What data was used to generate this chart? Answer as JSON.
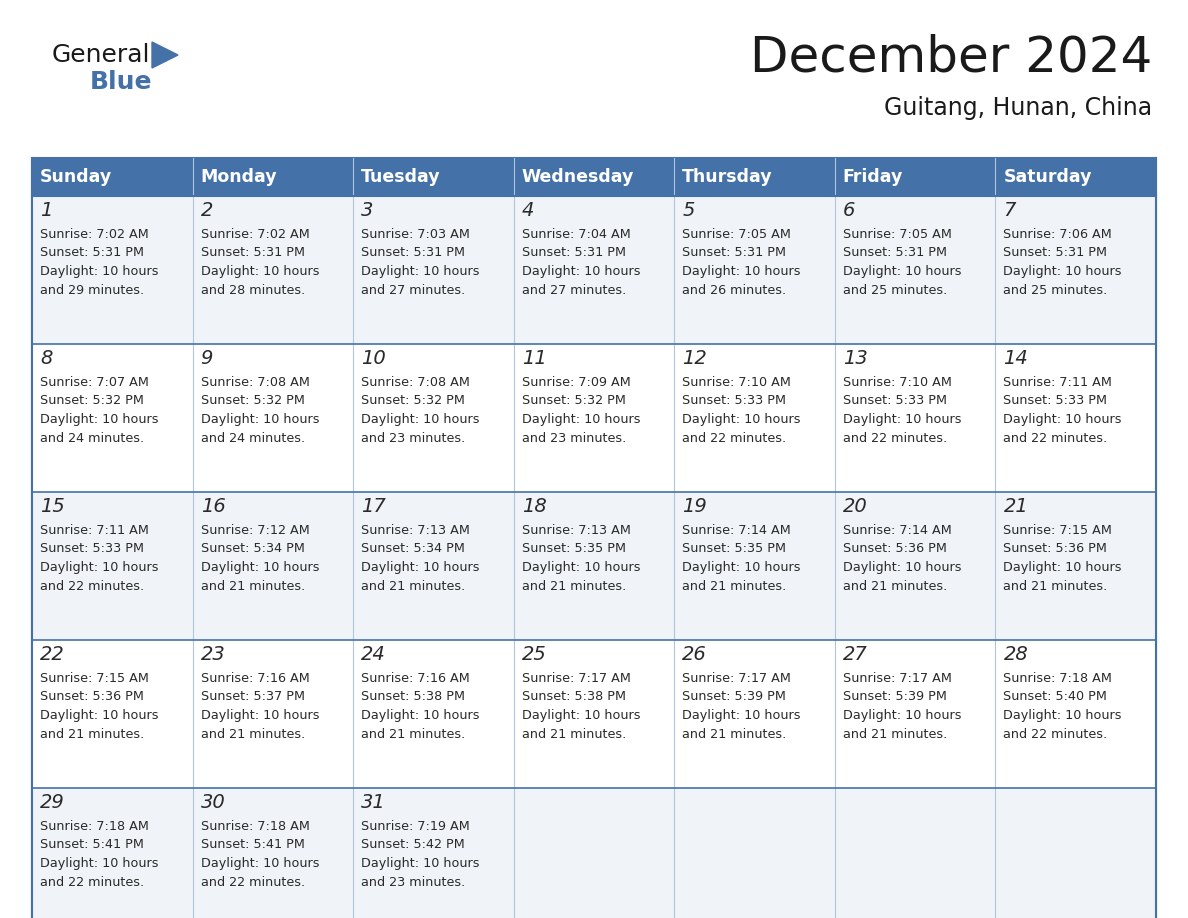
{
  "title": "December 2024",
  "subtitle": "Guitang, Hunan, China",
  "header_bg": "#4472a8",
  "header_text_color": "#ffffff",
  "row_bg_odd": "#f0f4f8",
  "row_bg_even": "#ffffff",
  "border_color": "#4472a8",
  "cell_line_color": "#b0c4de",
  "days_of_week": [
    "Sunday",
    "Monday",
    "Tuesday",
    "Wednesday",
    "Thursday",
    "Friday",
    "Saturday"
  ],
  "calendar_data": [
    [
      {
        "day": 1,
        "sunrise": "7:02 AM",
        "sunset": "5:31 PM",
        "daylight_hours": 10,
        "daylight_minutes": 29
      },
      {
        "day": 2,
        "sunrise": "7:02 AM",
        "sunset": "5:31 PM",
        "daylight_hours": 10,
        "daylight_minutes": 28
      },
      {
        "day": 3,
        "sunrise": "7:03 AM",
        "sunset": "5:31 PM",
        "daylight_hours": 10,
        "daylight_minutes": 27
      },
      {
        "day": 4,
        "sunrise": "7:04 AM",
        "sunset": "5:31 PM",
        "daylight_hours": 10,
        "daylight_minutes": 27
      },
      {
        "day": 5,
        "sunrise": "7:05 AM",
        "sunset": "5:31 PM",
        "daylight_hours": 10,
        "daylight_minutes": 26
      },
      {
        "day": 6,
        "sunrise": "7:05 AM",
        "sunset": "5:31 PM",
        "daylight_hours": 10,
        "daylight_minutes": 25
      },
      {
        "day": 7,
        "sunrise": "7:06 AM",
        "sunset": "5:31 PM",
        "daylight_hours": 10,
        "daylight_minutes": 25
      }
    ],
    [
      {
        "day": 8,
        "sunrise": "7:07 AM",
        "sunset": "5:32 PM",
        "daylight_hours": 10,
        "daylight_minutes": 24
      },
      {
        "day": 9,
        "sunrise": "7:08 AM",
        "sunset": "5:32 PM",
        "daylight_hours": 10,
        "daylight_minutes": 24
      },
      {
        "day": 10,
        "sunrise": "7:08 AM",
        "sunset": "5:32 PM",
        "daylight_hours": 10,
        "daylight_minutes": 23
      },
      {
        "day": 11,
        "sunrise": "7:09 AM",
        "sunset": "5:32 PM",
        "daylight_hours": 10,
        "daylight_minutes": 23
      },
      {
        "day": 12,
        "sunrise": "7:10 AM",
        "sunset": "5:33 PM",
        "daylight_hours": 10,
        "daylight_minutes": 22
      },
      {
        "day": 13,
        "sunrise": "7:10 AM",
        "sunset": "5:33 PM",
        "daylight_hours": 10,
        "daylight_minutes": 22
      },
      {
        "day": 14,
        "sunrise": "7:11 AM",
        "sunset": "5:33 PM",
        "daylight_hours": 10,
        "daylight_minutes": 22
      }
    ],
    [
      {
        "day": 15,
        "sunrise": "7:11 AM",
        "sunset": "5:33 PM",
        "daylight_hours": 10,
        "daylight_minutes": 22
      },
      {
        "day": 16,
        "sunrise": "7:12 AM",
        "sunset": "5:34 PM",
        "daylight_hours": 10,
        "daylight_minutes": 21
      },
      {
        "day": 17,
        "sunrise": "7:13 AM",
        "sunset": "5:34 PM",
        "daylight_hours": 10,
        "daylight_minutes": 21
      },
      {
        "day": 18,
        "sunrise": "7:13 AM",
        "sunset": "5:35 PM",
        "daylight_hours": 10,
        "daylight_minutes": 21
      },
      {
        "day": 19,
        "sunrise": "7:14 AM",
        "sunset": "5:35 PM",
        "daylight_hours": 10,
        "daylight_minutes": 21
      },
      {
        "day": 20,
        "sunrise": "7:14 AM",
        "sunset": "5:36 PM",
        "daylight_hours": 10,
        "daylight_minutes": 21
      },
      {
        "day": 21,
        "sunrise": "7:15 AM",
        "sunset": "5:36 PM",
        "daylight_hours": 10,
        "daylight_minutes": 21
      }
    ],
    [
      {
        "day": 22,
        "sunrise": "7:15 AM",
        "sunset": "5:36 PM",
        "daylight_hours": 10,
        "daylight_minutes": 21
      },
      {
        "day": 23,
        "sunrise": "7:16 AM",
        "sunset": "5:37 PM",
        "daylight_hours": 10,
        "daylight_minutes": 21
      },
      {
        "day": 24,
        "sunrise": "7:16 AM",
        "sunset": "5:38 PM",
        "daylight_hours": 10,
        "daylight_minutes": 21
      },
      {
        "day": 25,
        "sunrise": "7:17 AM",
        "sunset": "5:38 PM",
        "daylight_hours": 10,
        "daylight_minutes": 21
      },
      {
        "day": 26,
        "sunrise": "7:17 AM",
        "sunset": "5:39 PM",
        "daylight_hours": 10,
        "daylight_minutes": 21
      },
      {
        "day": 27,
        "sunrise": "7:17 AM",
        "sunset": "5:39 PM",
        "daylight_hours": 10,
        "daylight_minutes": 21
      },
      {
        "day": 28,
        "sunrise": "7:18 AM",
        "sunset": "5:40 PM",
        "daylight_hours": 10,
        "daylight_minutes": 22
      }
    ],
    [
      {
        "day": 29,
        "sunrise": "7:18 AM",
        "sunset": "5:41 PM",
        "daylight_hours": 10,
        "daylight_minutes": 22
      },
      {
        "day": 30,
        "sunrise": "7:18 AM",
        "sunset": "5:41 PM",
        "daylight_hours": 10,
        "daylight_minutes": 22
      },
      {
        "day": 31,
        "sunrise": "7:19 AM",
        "sunset": "5:42 PM",
        "daylight_hours": 10,
        "daylight_minutes": 23
      },
      null,
      null,
      null,
      null
    ]
  ],
  "logo_color_general": "#1a1a1a",
  "logo_color_blue": "#4472a8",
  "logo_triangle_color": "#4472a8"
}
